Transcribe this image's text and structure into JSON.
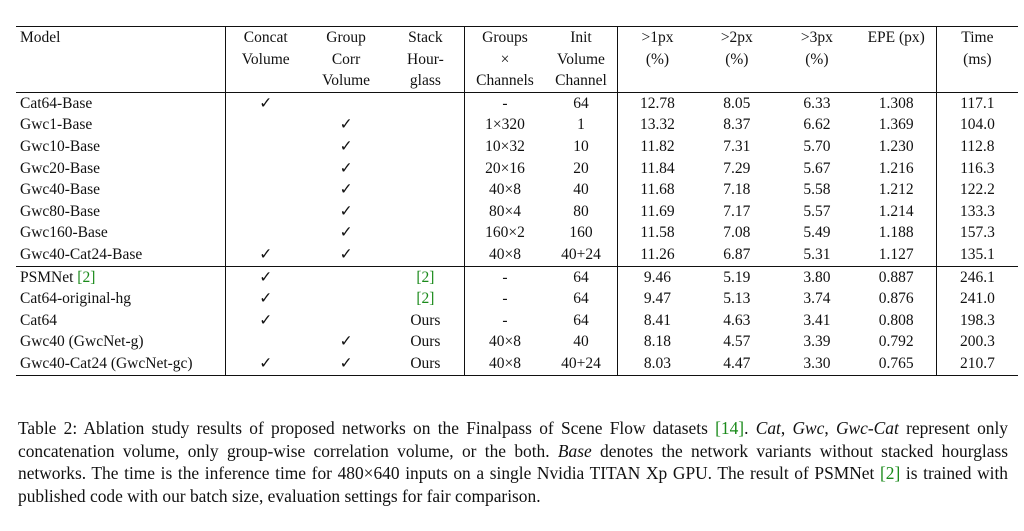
{
  "table": {
    "headers": [
      [
        "Model"
      ],
      [
        "Concat",
        "Volume"
      ],
      [
        "Group",
        "Corr",
        "Volume"
      ],
      [
        "Stack",
        "Hour-",
        "glass"
      ],
      [
        "Groups",
        "×",
        "Channels"
      ],
      [
        "Init",
        "Volume",
        "Channel"
      ],
      [
        ">1px",
        "(%)"
      ],
      [
        ">2px",
        "(%)"
      ],
      [
        ">3px",
        "(%)"
      ],
      [
        "EPE (px)"
      ],
      [
        "Time",
        "(ms)"
      ]
    ],
    "rows": [
      {
        "model": "Cat64-Base",
        "model_cite": "",
        "concat": "✓",
        "group": "",
        "stack": "",
        "stack_cite": "",
        "groups": "-",
        "init": "64",
        "p1": "12.78",
        "p2": "8.05",
        "p3": "6.33",
        "epe": "1.308",
        "time": "117.1",
        "bold": false,
        "sep": false
      },
      {
        "model": "Gwc1-Base",
        "model_cite": "",
        "concat": "",
        "group": "✓",
        "stack": "",
        "stack_cite": "",
        "groups": "1×320",
        "init": "1",
        "p1": "13.32",
        "p2": "8.37",
        "p3": "6.62",
        "epe": "1.369",
        "time": "104.0",
        "bold": false,
        "sep": false
      },
      {
        "model": "Gwc10-Base",
        "model_cite": "",
        "concat": "",
        "group": "✓",
        "stack": "",
        "stack_cite": "",
        "groups": "10×32",
        "init": "10",
        "p1": "11.82",
        "p2": "7.31",
        "p3": "5.70",
        "epe": "1.230",
        "time": "112.8",
        "bold": false,
        "sep": false
      },
      {
        "model": "Gwc20-Base",
        "model_cite": "",
        "concat": "",
        "group": "✓",
        "stack": "",
        "stack_cite": "",
        "groups": "20×16",
        "init": "20",
        "p1": "11.84",
        "p2": "7.29",
        "p3": "5.67",
        "epe": "1.216",
        "time": "116.3",
        "bold": false,
        "sep": false
      },
      {
        "model": "Gwc40-Base",
        "model_cite": "",
        "concat": "",
        "group": "✓",
        "stack": "",
        "stack_cite": "",
        "groups": "40×8",
        "init": "40",
        "p1": "11.68",
        "p2": "7.18",
        "p3": "5.58",
        "epe": "1.212",
        "time": "122.2",
        "bold": false,
        "sep": false
      },
      {
        "model": "Gwc80-Base",
        "model_cite": "",
        "concat": "",
        "group": "✓",
        "stack": "",
        "stack_cite": "",
        "groups": "80×4",
        "init": "80",
        "p1": "11.69",
        "p2": "7.17",
        "p3": "5.57",
        "epe": "1.214",
        "time": "133.3",
        "bold": false,
        "sep": false
      },
      {
        "model": "Gwc160-Base",
        "model_cite": "",
        "concat": "",
        "group": "✓",
        "stack": "",
        "stack_cite": "",
        "groups": "160×2",
        "init": "160",
        "p1": "11.58",
        "p2": "7.08",
        "p3": "5.49",
        "epe": "1.188",
        "time": "157.3",
        "bold": false,
        "sep": false
      },
      {
        "model": "Gwc40-Cat24-Base",
        "model_cite": "",
        "concat": "✓",
        "group": "✓",
        "stack": "",
        "stack_cite": "",
        "groups": "40×8",
        "init": "40+24",
        "p1": "11.26",
        "p2": "6.87",
        "p3": "5.31",
        "epe": "1.127",
        "time": "135.1",
        "bold": true,
        "sep": false
      },
      {
        "model": "PSMNet ",
        "model_cite": "[2]",
        "concat": "✓",
        "group": "",
        "stack": "",
        "stack_cite": "[2]",
        "groups": "-",
        "init": "64",
        "p1": "9.46",
        "p2": "5.19",
        "p3": "3.80",
        "epe": "0.887",
        "time": "246.1",
        "bold": false,
        "sep": true
      },
      {
        "model": "Cat64-original-hg",
        "model_cite": "",
        "concat": "✓",
        "group": "",
        "stack": "",
        "stack_cite": "[2]",
        "groups": "-",
        "init": "64",
        "p1": "9.47",
        "p2": "5.13",
        "p3": "3.74",
        "epe": "0.876",
        "time": "241.0",
        "bold": false,
        "sep": false
      },
      {
        "model": "Cat64",
        "model_cite": "",
        "concat": "✓",
        "group": "",
        "stack": "Ours",
        "stack_cite": "",
        "groups": "-",
        "init": "64",
        "p1": "8.41",
        "p2": "4.63",
        "p3": "3.41",
        "epe": "0.808",
        "time": "198.3",
        "bold": false,
        "sep": false
      },
      {
        "model": "Gwc40 (GwcNet-g)",
        "model_cite": "",
        "concat": "",
        "group": "✓",
        "stack": "Ours",
        "stack_cite": "",
        "groups": "40×8",
        "init": "40",
        "p1": "8.18",
        "p2": "4.57",
        "p3": "3.39",
        "epe": "0.792",
        "time": "200.3",
        "bold": false,
        "sep": false
      },
      {
        "model": "Gwc40-Cat24 (GwcNet-gc)",
        "model_cite": "",
        "concat": "✓",
        "group": "✓",
        "stack": "Ours",
        "stack_cite": "",
        "groups": "40×8",
        "init": "40+24",
        "p1": "8.03",
        "p2": "4.47",
        "p3": "3.30",
        "epe": "0.765",
        "time": "210.7",
        "bold": true,
        "sep": false
      }
    ]
  },
  "caption": {
    "label": "Table 2: Ablation study results of proposed networks on the Finalpass of Scene Flow datasets ",
    "cite1": "[14]",
    "t1": ". ",
    "cat": "Cat",
    "t2": ", ",
    "gwc": "Gwc",
    "t3": ", ",
    "gwccat": "Gwc-Cat",
    "t4": " represent only concatenation volume, only group-wise correlation volume, or the both. ",
    "base": "Base",
    "t5": " denotes the network variants without stacked hourglass networks. The time is the inference time for 480×640 inputs on a single Nvidia TITAN Xp GPU. The result of PSMNet ",
    "cite2": "[2]",
    "t6": " is trained with published code with our batch size, evaluation settings for fair comparison."
  }
}
